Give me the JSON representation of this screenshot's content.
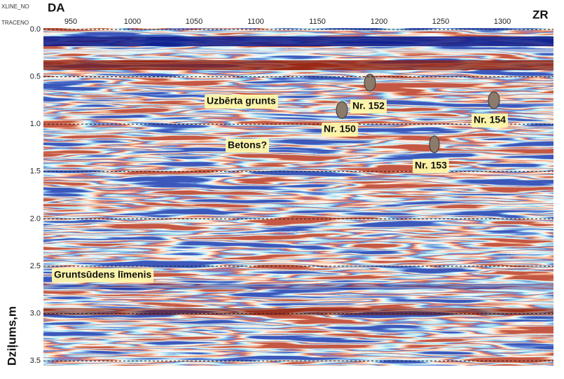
{
  "axis": {
    "x_name": "XLINE_NO",
    "x_sub": "TRACENO",
    "y_name": "Dziļums,m",
    "xticks": [
      "950",
      "1000",
      "1050",
      "1100",
      "1150",
      "1200",
      "1250",
      "1300"
    ],
    "yticks": [
      "0.0",
      "0.5",
      "1.0",
      "1.5",
      "2.0",
      "2.5",
      "3.0",
      "3.5"
    ]
  },
  "directions": {
    "left": "DA",
    "right": "ZR"
  },
  "annotations": [
    "Uzbērta grunts",
    "Betons?",
    "Nr. 150",
    "Nr. 152",
    "Nr. 153",
    "Nr. 154",
    "Gruntsūdens līmenis"
  ]
}
